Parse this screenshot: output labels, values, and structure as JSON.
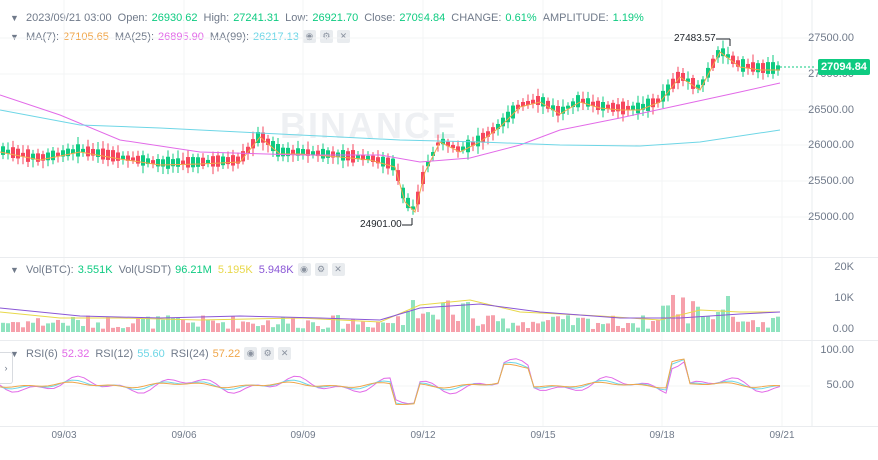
{
  "header": {
    "datetime": "2023/09/21 03:00",
    "open_label": "Open:",
    "open": "26930.62",
    "high_label": "High:",
    "high": "27241.31",
    "low_label": "Low:",
    "low": "26921.70",
    "close_label": "Close:",
    "close": "27094.84",
    "change_label": "CHANGE:",
    "change": "0.61%",
    "amplitude_label": "AMPLITUDE:",
    "amplitude": "1.19%"
  },
  "ma": {
    "ma7_label": "MA(7):",
    "ma7": "27105.65",
    "ma25_label": "MA(25):",
    "ma25": "26895.90",
    "ma99_label": "MA(99):",
    "ma99": "26217.13"
  },
  "volume": {
    "label": "Vol(BTC):",
    "btc": "3.551K",
    "usdt_label": "Vol(USDT)",
    "usdt": "96.21M",
    "v1": "5.195K",
    "v2": "5.948K"
  },
  "rsi": {
    "rsi6_label": "RSI(6)",
    "rsi6": "52.32",
    "rsi12_label": "RSI(12)",
    "rsi12": "55.60",
    "rsi24_label": "RSI(24)",
    "rsi24": "57.22"
  },
  "price_axis": [
    "27500.00",
    "27000.00",
    "26500.00",
    "26000.00",
    "25500.00",
    "25000.00"
  ],
  "volume_axis": [
    "20K",
    "10K",
    "0.00"
  ],
  "rsi_axis": [
    "100.00",
    "50.00"
  ],
  "dates": [
    "09/03",
    "09/06",
    "09/09",
    "09/12",
    "09/15",
    "09/18",
    "09/21"
  ],
  "current_price": "27094.84",
  "high_annotation": "27483.57",
  "low_annotation": "24901.00",
  "watermark": "BINANCE",
  "colors": {
    "up": "#0ecb81",
    "down": "#f6465d",
    "ma7": "#f0a64a",
    "ma25": "#e26ae8",
    "ma99": "#6ed6e6"
  }
}
